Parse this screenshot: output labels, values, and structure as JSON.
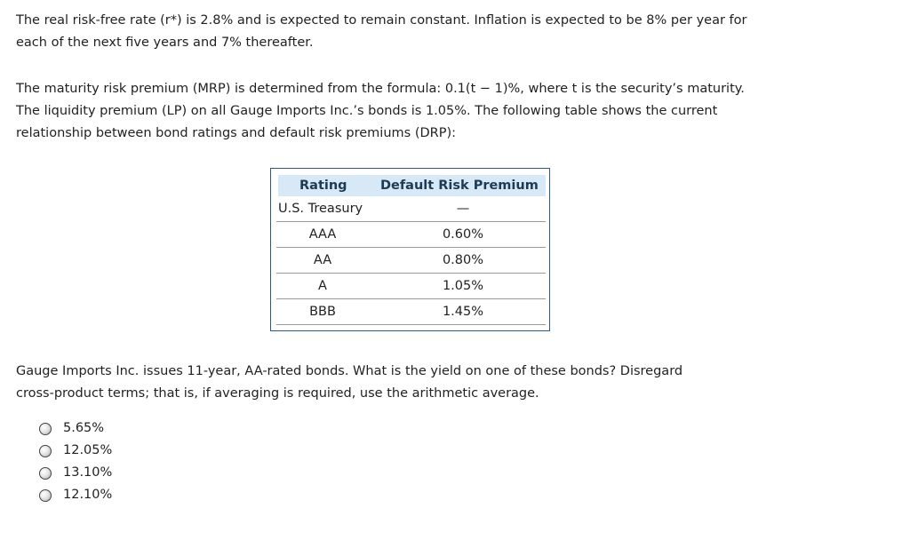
{
  "intro": {
    "line1": "The real risk-free rate (r*) is 2.8% and is expected to remain constant. Inflation is expected to be 8% per year for",
    "line2": "each of the next five years and 7% thereafter."
  },
  "premiums": {
    "line1": "The maturity risk premium (MRP) is determined from the formula: 0.1(t − 1)%, where t is the security’s maturity.",
    "line2": "The liquidity premium (LP) on all Gauge Imports Inc.’s bonds is 1.05%. The following table shows the current",
    "line3": "relationship between bond ratings and default risk premiums (DRP):"
  },
  "table": {
    "headers": [
      "Rating",
      "Default Risk Premium"
    ],
    "rows": [
      [
        "U.S. Treasury",
        "—"
      ],
      [
        "AAA",
        "0.60%"
      ],
      [
        "AA",
        "0.80%"
      ],
      [
        "A",
        "1.05%"
      ],
      [
        "BBB",
        "1.45%"
      ]
    ]
  },
  "question": {
    "line1": "Gauge Imports Inc. issues 11-year, AA-rated bonds. What is the yield on one of these bonds? Disregard",
    "line2": "cross-product terms; that is, if averaging is required, use the arithmetic average."
  },
  "options": [
    "5.65%",
    "12.05%",
    "13.10%",
    "12.10%"
  ]
}
